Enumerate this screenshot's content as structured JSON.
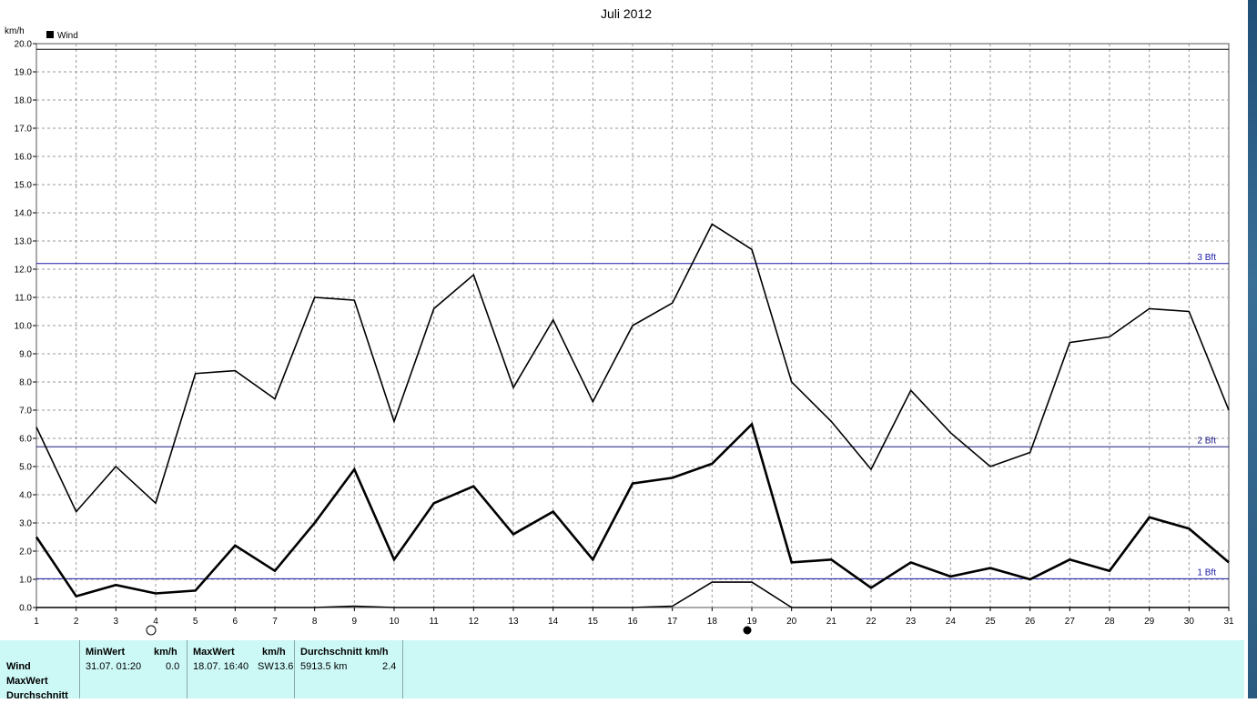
{
  "chart_data": {
    "type": "line",
    "title": "Juli 2012",
    "ylabel": "km/h",
    "xlabel": "",
    "legend": {
      "label": "Wind",
      "placement": "top-left"
    },
    "ylim": [
      0,
      20
    ],
    "y_ticks": [
      "0.0",
      "1.0",
      "2.0",
      "3.0",
      "4.0",
      "5.0",
      "6.0",
      "7.0",
      "8.0",
      "9.0",
      "10.0",
      "11.0",
      "12.0",
      "13.0",
      "14.0",
      "15.0",
      "16.0",
      "17.0",
      "18.0",
      "19.0",
      "20.0"
    ],
    "x": [
      1,
      2,
      3,
      4,
      5,
      6,
      7,
      8,
      9,
      10,
      11,
      12,
      13,
      14,
      15,
      16,
      17,
      18,
      19,
      20,
      21,
      22,
      23,
      24,
      25,
      26,
      27,
      28,
      29,
      30,
      31
    ],
    "x_ticks": [
      "1",
      "2",
      "3",
      "4",
      "5",
      "6",
      "7",
      "8",
      "9",
      "10",
      "11",
      "12",
      "13",
      "14",
      "15",
      "16",
      "17",
      "18",
      "19",
      "20",
      "21",
      "22",
      "23",
      "24",
      "25",
      "26",
      "27",
      "28",
      "29",
      "30",
      "31"
    ],
    "grid": true,
    "series": [
      {
        "role": "max",
        "values": [
          6.4,
          3.4,
          5.0,
          3.7,
          8.3,
          8.4,
          7.4,
          11.0,
          10.9,
          6.6,
          10.6,
          11.8,
          7.8,
          10.2,
          7.3,
          10.0,
          10.8,
          13.6,
          12.7,
          8.0,
          6.6,
          4.9,
          7.7,
          6.2,
          5.0,
          5.5,
          9.4,
          9.6,
          10.6,
          10.5,
          7.0
        ]
      },
      {
        "role": "average",
        "values": [
          2.5,
          0.4,
          0.8,
          0.5,
          0.6,
          2.2,
          1.3,
          3.0,
          4.9,
          1.7,
          3.7,
          4.3,
          2.6,
          3.4,
          1.7,
          4.4,
          4.6,
          5.1,
          6.5,
          1.6,
          1.7,
          0.7,
          1.6,
          1.1,
          1.4,
          1.0,
          1.7,
          1.3,
          3.2,
          2.8,
          1.6
        ]
      },
      {
        "role": "min",
        "values": [
          0,
          0,
          0,
          0,
          0,
          0,
          0,
          0,
          0.05,
          0,
          0,
          0,
          0,
          0,
          0,
          0,
          0.05,
          0.9,
          0.9,
          0,
          0,
          0,
          0,
          0,
          0,
          0,
          0,
          0,
          0,
          0,
          0
        ]
      }
    ],
    "reference_lines": [
      {
        "label": "3 Bft",
        "value": 12.2,
        "color": "#1a1aa6"
      },
      {
        "label": "2 Bft",
        "value": 5.7,
        "color": "#1a1a80"
      },
      {
        "label": "1 Bft",
        "value": 1.02,
        "color": "#1a1aa6"
      },
      {
        "label": "",
        "value": 19.8,
        "color": "#000000"
      }
    ],
    "moon_phase_icons": [
      {
        "day": 4,
        "icon": "full-moon-icon"
      },
      {
        "day": 19,
        "icon": "new-moon-icon"
      }
    ]
  },
  "stats_table": {
    "row_labels": [
      "Wind",
      "MaxWert",
      "Durchschnitt"
    ],
    "columns": [
      {
        "header_label": "MinWert",
        "header_unit": "km/h",
        "when": "31.07.  01:20",
        "value": "0.0"
      },
      {
        "header_label": "MaxWert",
        "header_unit": "km/h",
        "when": "18.07.  16:40",
        "direction": "SW",
        "value": "13.6"
      },
      {
        "header_label": "Durchschnitt km/h",
        "header_unit": "",
        "when": "5913.5 km",
        "value": "2.4"
      }
    ]
  },
  "colors": {
    "stats_background": "#ccf9f6",
    "grid": "#999999",
    "reference_line": "#1a1aa6"
  }
}
